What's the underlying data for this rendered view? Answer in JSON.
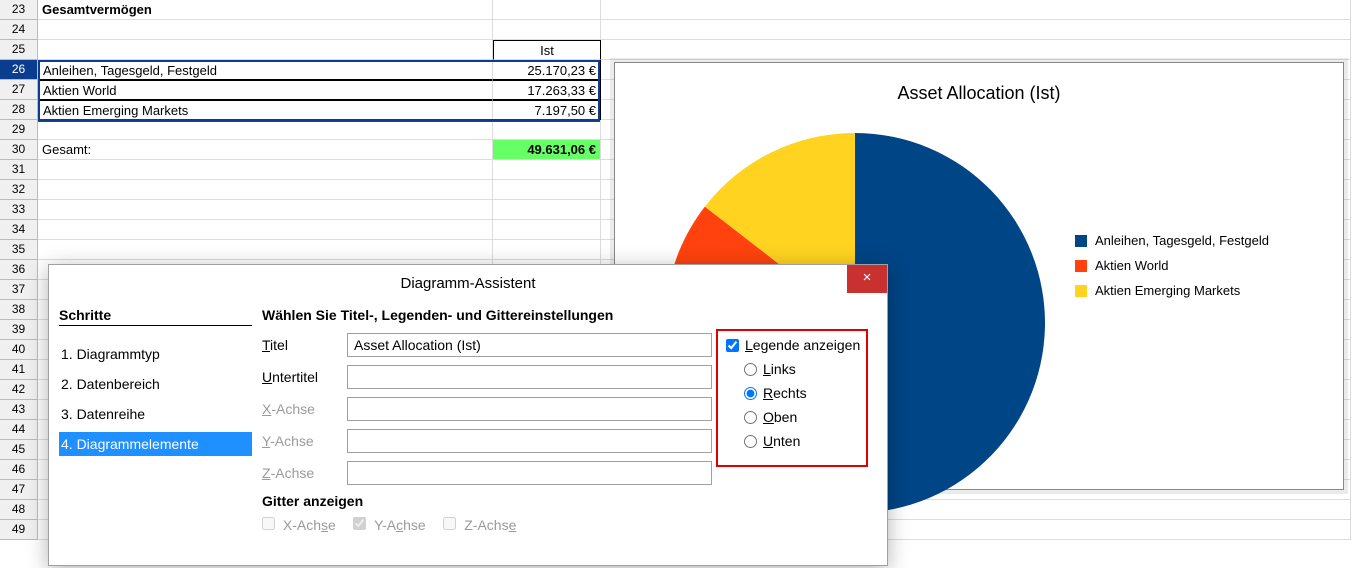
{
  "spreadsheet": {
    "heading_row": 23,
    "heading_text": "Gesamtvermögen",
    "ist_header_row": 25,
    "ist_header": "Ist",
    "data_start_row": 26,
    "rows": [
      {
        "label": "Anleihen, Tagesgeld, Festgeld",
        "value": "25.170,23 €"
      },
      {
        "label": "Aktien World",
        "value": "17.263,33 €"
      },
      {
        "label": "Aktien Emerging Markets",
        "value": "7.197,50 €"
      }
    ],
    "total_row": 30,
    "total_label": "Gesamt:",
    "total_value": "49.631,06 €",
    "row_numbers": [
      23,
      24,
      25,
      26,
      27,
      28,
      29,
      30,
      31,
      32,
      33,
      34,
      35,
      36,
      37,
      38,
      39,
      40,
      41,
      42,
      43,
      44,
      45,
      46,
      47,
      48,
      49
    ],
    "selected_row": 26,
    "colors": {
      "total_bg": "#66ff66",
      "rowhdr_bg": "#f0f0f0",
      "rowhdr_selected_bg": "#0a3d8f",
      "gridline": "#dcdcdc",
      "red_highlight": "#e00000",
      "blue_select": "#0a3d8f"
    }
  },
  "chart": {
    "title": "Asset Allocation (Ist)",
    "type": "pie",
    "series": [
      {
        "label": "Anleihen, Tagesgeld, Festgeld",
        "value": 25170.23,
        "color": "#004586"
      },
      {
        "label": "Aktien World",
        "value": 17263.33,
        "color": "#ff420e"
      },
      {
        "label": "Aktien Emerging Markets",
        "value": 7197.5,
        "color": "#ffd320"
      }
    ],
    "background_color": "#ffffff",
    "title_fontsize": 18,
    "legend_fontsize": 13,
    "pie_radius": 190,
    "start_angle_deg": 90,
    "direction": "clockwise",
    "handle_color": "#0a7a3f"
  },
  "dialog": {
    "title": "Diagramm-Assistent",
    "steps_header": "Schritte",
    "steps": [
      "1. Diagrammtyp",
      "2. Datenbereich",
      "3. Datenreihe",
      "4. Diagrammelemente"
    ],
    "selected_step_index": 3,
    "form_header": "Wählen Sie Titel-, Legenden- und Gittereinstellungen",
    "fields": {
      "title_label": "Titel",
      "title_value": "Asset Allocation (Ist)",
      "subtitle_label": "Untertitel",
      "subtitle_value": "",
      "x_label": "X-Achse",
      "y_label": "Y-Achse",
      "z_label": "Z-Achse"
    },
    "legend_box": {
      "show_label": "Legende anzeigen",
      "show_checked": true,
      "position_options": [
        "Links",
        "Rechts",
        "Oben",
        "Unten"
      ],
      "position_selected_index": 1
    },
    "grid_header": "Gitter anzeigen",
    "grid_options": {
      "x_label": "X-Achse",
      "x_checked": false,
      "y_label": "Y-Achse",
      "y_checked": true,
      "z_label": "Z-Achse",
      "z_checked": false
    },
    "close_icon": "×"
  }
}
